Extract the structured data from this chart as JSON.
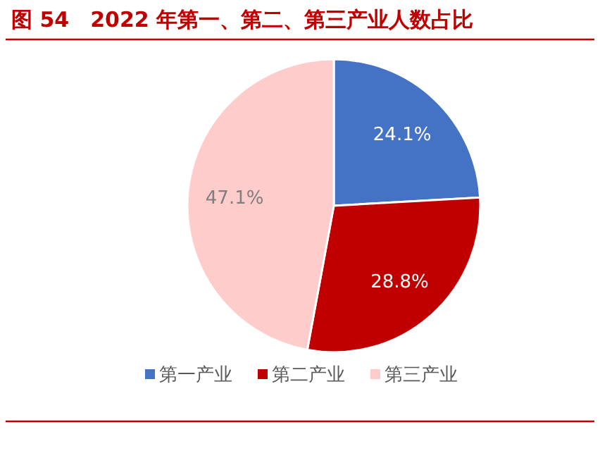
{
  "chart_data": {
    "type": "pie",
    "title": "图 54　2022 年第一、第二、第三产业人数占比",
    "categories": [
      "第一产业",
      "第二产业",
      "第三产业"
    ],
    "values": [
      24.1,
      28.8,
      47.1
    ],
    "colors": [
      "#4472c4",
      "#c00000",
      "#ffcccc"
    ],
    "value_labels": [
      "24.1%",
      "28.8%",
      "47.1%"
    ],
    "legend": "bottom"
  }
}
